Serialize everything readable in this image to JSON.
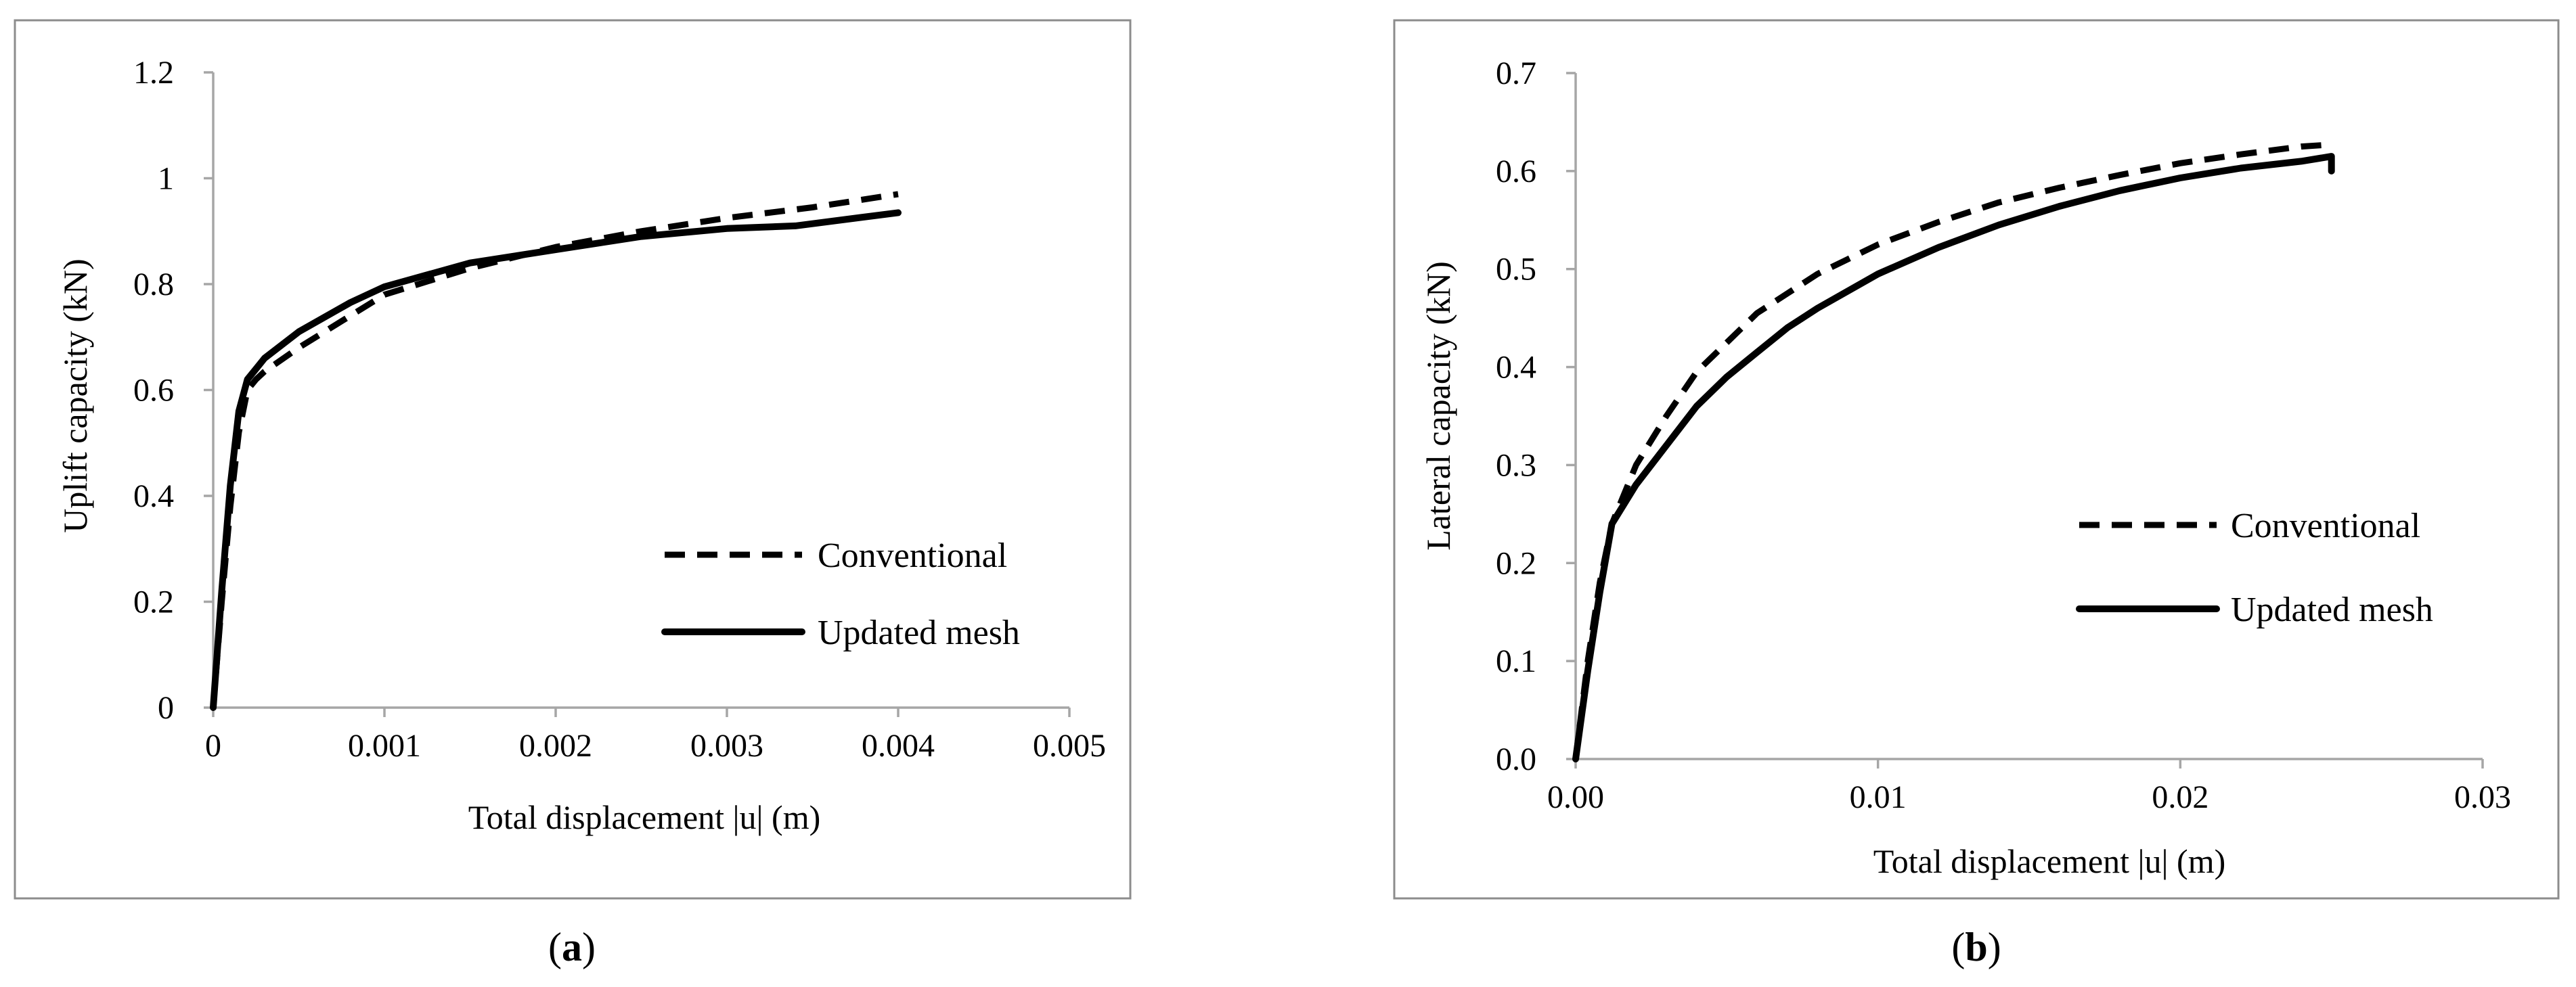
{
  "chart_data": [
    {
      "type": "line",
      "panel_label": "a",
      "title": "",
      "xlabel": "Total displacement |u| (m)",
      "ylabel": "Uplift capacity (kN)",
      "xlim": [
        0,
        0.005
      ],
      "ylim": [
        0,
        1.2
      ],
      "xticks": [
        0,
        0.001,
        0.002,
        0.003,
        0.004,
        0.005
      ],
      "xtick_labels": [
        "0",
        "0.001",
        "0.002",
        "0.003",
        "0.004",
        "0.005"
      ],
      "yticks": [
        0,
        0.2,
        0.4,
        0.6,
        0.8,
        1.0,
        1.2
      ],
      "ytick_labels": [
        "0",
        "0.2",
        "0.4",
        "0.6",
        "0.8",
        "1",
        "1.2"
      ],
      "legend": "center-right",
      "series": [
        {
          "name": "Conventional",
          "style": "dashed",
          "x": [
            0,
            5e-05,
            0.0001,
            0.00015,
            0.0002,
            0.00025,
            0.0003,
            0.0005,
            0.0008,
            0.001,
            0.0015,
            0.002,
            0.0025,
            0.003,
            0.0035,
            0.004
          ],
          "y": [
            0,
            0.2,
            0.38,
            0.52,
            0.6,
            0.62,
            0.635,
            0.68,
            0.74,
            0.78,
            0.83,
            0.87,
            0.9,
            0.925,
            0.945,
            0.97
          ]
        },
        {
          "name": "Updated mesh",
          "style": "solid",
          "x": [
            0,
            5e-05,
            0.0001,
            0.00015,
            0.0002,
            0.00025,
            0.0003,
            0.0005,
            0.0008,
            0.001,
            0.0015,
            0.002,
            0.0025,
            0.003,
            0.0034,
            0.004
          ],
          "y": [
            0,
            0.22,
            0.42,
            0.56,
            0.62,
            0.64,
            0.66,
            0.71,
            0.765,
            0.795,
            0.84,
            0.865,
            0.89,
            0.905,
            0.91,
            0.935
          ]
        }
      ]
    },
    {
      "type": "line",
      "panel_label": "b",
      "title": "",
      "xlabel": "Total displacement |u| (m)",
      "ylabel": "Lateral capacity (kN)",
      "xlim": [
        0,
        0.03
      ],
      "ylim": [
        0,
        0.7
      ],
      "xticks": [
        0,
        0.01,
        0.02,
        0.03
      ],
      "xtick_labels": [
        "0.00",
        "0.01",
        "0.02",
        "0.03"
      ],
      "yticks": [
        0,
        0.1,
        0.2,
        0.3,
        0.4,
        0.5,
        0.6,
        0.7
      ],
      "ytick_labels": [
        "0.0",
        "0.1",
        "0.2",
        "0.3",
        "0.4",
        "0.5",
        "0.6",
        "0.7"
      ],
      "legend": "center-right",
      "series": [
        {
          "name": "Conventional",
          "style": "dashed",
          "x": [
            0,
            0.0004,
            0.0008,
            0.0012,
            0.002,
            0.003,
            0.004,
            0.005,
            0.006,
            0.007,
            0.008,
            0.01,
            0.012,
            0.014,
            0.016,
            0.018,
            0.02,
            0.022,
            0.024,
            0.025
          ],
          "y": [
            0,
            0.1,
            0.18,
            0.24,
            0.3,
            0.35,
            0.395,
            0.425,
            0.455,
            0.475,
            0.495,
            0.525,
            0.548,
            0.568,
            0.583,
            0.596,
            0.608,
            0.617,
            0.625,
            0.627
          ]
        },
        {
          "name": "Updated mesh",
          "style": "solid",
          "x": [
            0,
            0.0004,
            0.0008,
            0.0012,
            0.002,
            0.003,
            0.004,
            0.005,
            0.006,
            0.007,
            0.008,
            0.01,
            0.012,
            0.014,
            0.016,
            0.018,
            0.02,
            0.022,
            0.024,
            0.025,
            0.025
          ],
          "y": [
            0,
            0.09,
            0.17,
            0.24,
            0.28,
            0.32,
            0.36,
            0.39,
            0.415,
            0.44,
            0.46,
            0.495,
            0.522,
            0.545,
            0.564,
            0.58,
            0.593,
            0.603,
            0.61,
            0.615,
            0.6
          ]
        }
      ]
    }
  ]
}
